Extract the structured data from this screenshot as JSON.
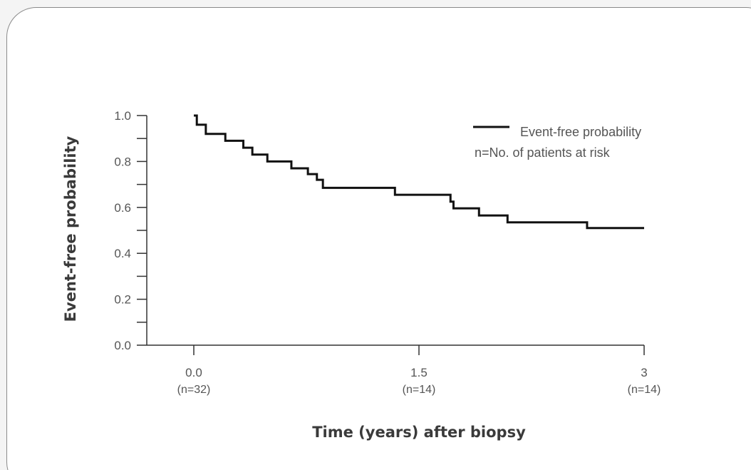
{
  "chart_data": {
    "type": "line",
    "step": true,
    "title": "",
    "xlabel": "Time (years) after biopsy",
    "ylabel": "Event-free probability",
    "xlim": [
      0,
      3
    ],
    "ylim": [
      0,
      1.0
    ],
    "yticks": [
      "0.0",
      "0.2",
      "0.4",
      "0.6",
      "0.8",
      "1.0"
    ],
    "ytick_values": [
      0.0,
      0.2,
      0.4,
      0.6,
      0.8,
      1.0
    ],
    "yminor_ticks": [
      0.1,
      0.3,
      0.5,
      0.7,
      0.9
    ],
    "xticks": [
      {
        "value": 0.0,
        "label": "0.0",
        "sublabel": "(n=32)"
      },
      {
        "value": 1.5,
        "label": "1.5",
        "sublabel": "(n=14)"
      },
      {
        "value": 3,
        "label": "3",
        "sublabel": "(n=14)"
      }
    ],
    "grid": false,
    "legend_position": "top-right",
    "legend": {
      "series_label": "Event-free probability",
      "note": "n=No. of patients at risk"
    },
    "series": [
      {
        "name": "Event-free probability",
        "color": "#111111",
        "x": [
          0.0,
          0.02,
          0.08,
          0.21,
          0.33,
          0.39,
          0.49,
          0.65,
          0.76,
          0.82,
          0.86,
          1.34,
          1.71,
          1.73,
          1.75,
          1.9,
          2.09,
          2.62,
          3.0
        ],
        "y": [
          1.0,
          0.96,
          0.92,
          0.89,
          0.86,
          0.83,
          0.8,
          0.77,
          0.745,
          0.72,
          0.685,
          0.655,
          0.625,
          0.596,
          0.596,
          0.565,
          0.535,
          0.51,
          0.51
        ]
      }
    ]
  }
}
